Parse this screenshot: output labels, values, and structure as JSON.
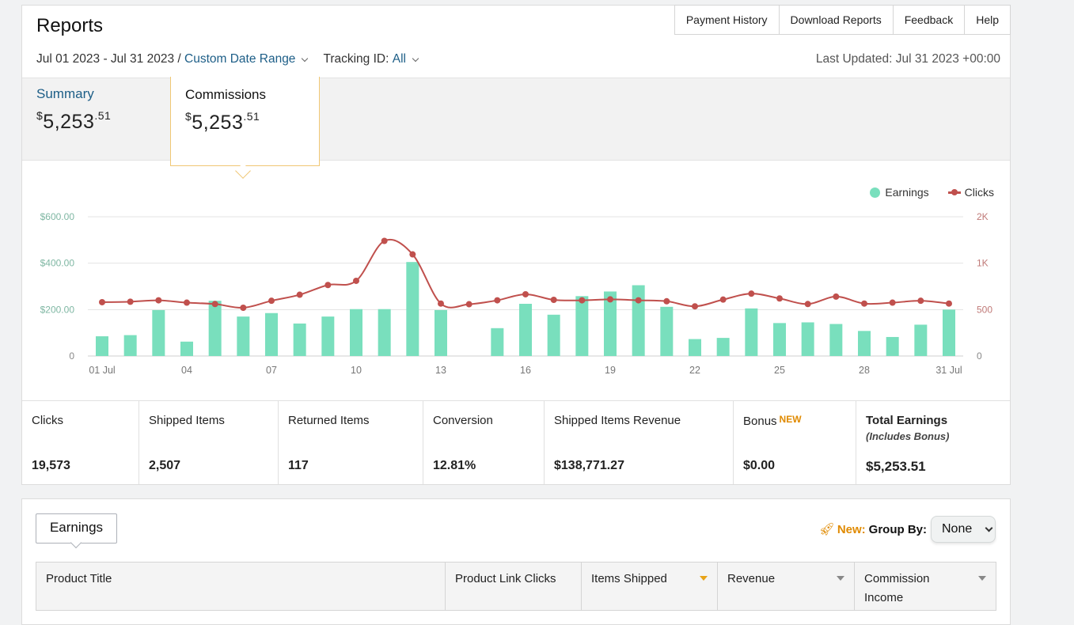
{
  "header": {
    "title": "Reports",
    "links": [
      "Payment History",
      "Download Reports",
      "Feedback",
      "Help"
    ],
    "date_range": "Jul 01 2023 - Jul 31 2023 /",
    "custom_range": "Custom Date Range",
    "tracking_label": "Tracking ID:",
    "tracking_value": "All",
    "last_updated": "Last Updated: Jul 31 2023 +00:00"
  },
  "summary": {
    "summary_label": "Summary",
    "summary_currency": "$",
    "summary_whole": "5,253",
    "summary_cents": ".51",
    "commissions_label": "Commissions",
    "commissions_currency": "$",
    "commissions_whole": "5,253",
    "commissions_cents": ".51"
  },
  "chart_data": {
    "type": "bar+line",
    "x_tick_labels": [
      "01 Jul",
      "04",
      "07",
      "10",
      "13",
      "16",
      "19",
      "22",
      "25",
      "28",
      "31 Jul"
    ],
    "y_left_ticks": [
      "0",
      "$200.00",
      "$400.00",
      "$600.00"
    ],
    "y_left_range": [
      0,
      600
    ],
    "y_right_ticks": [
      "0",
      "500",
      "1K",
      "2K"
    ],
    "y_right_range": [
      0,
      1500
    ],
    "legend": [
      "Earnings",
      "Clicks"
    ],
    "grid": true,
    "legend_position": "top-right",
    "colors": {
      "earnings": "#79dfbd",
      "clicks": "#c0504d"
    },
    "series": [
      {
        "name": "Earnings",
        "axis": "left",
        "values": [
          85,
          90,
          198,
          62,
          238,
          170,
          185,
          140,
          170,
          202,
          202,
          405,
          198,
          0,
          120,
          225,
          178,
          258,
          278,
          305,
          212,
          73,
          78,
          205,
          142,
          145,
          138,
          108,
          82,
          135,
          200
        ]
      },
      {
        "name": "Clicks",
        "axis": "right",
        "values": [
          580,
          585,
          600,
          575,
          560,
          520,
          595,
          660,
          765,
          810,
          1240,
          1095,
          565,
          558,
          600,
          665,
          605,
          600,
          610,
          600,
          590,
          535,
          608,
          672,
          620,
          560,
          640,
          565,
          575,
          595,
          565
        ]
      }
    ]
  },
  "metrics": {
    "clicks_label": "Clicks",
    "clicks_value": "19,573",
    "shipped_label": "Shipped Items",
    "shipped_value": "2,507",
    "returned_label": "Returned Items",
    "returned_value": "117",
    "conversion_label": "Conversion",
    "conversion_value": "12.81%",
    "revenue_label": "Shipped Items Revenue",
    "revenue_value": "$138,771.27",
    "bonus_label": "Bonus",
    "bonus_badge": "NEW",
    "bonus_value": "$0.00",
    "total_label": "Total Earnings",
    "total_sub": "(Includes Bonus)",
    "total_value": "$5,253.51"
  },
  "bottom": {
    "earnings_tab": "Earnings",
    "new_label": "New:",
    "group_by_label": "Group By:",
    "group_by_value": "None",
    "columns": [
      "Product Title",
      "Product Link Clicks",
      "Items Shipped",
      "Revenue",
      "Commission Income"
    ]
  }
}
